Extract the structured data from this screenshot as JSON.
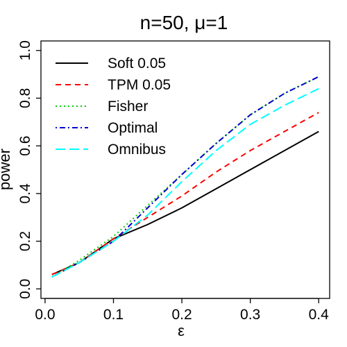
{
  "chart_data": {
    "type": "line",
    "title": "n=50, μ=1",
    "xlabel": "ε",
    "ylabel": "power",
    "xlim": [
      0.0,
      0.4
    ],
    "ylim": [
      0.0,
      1.0
    ],
    "xticks": [
      0.0,
      0.1,
      0.2,
      0.3,
      0.4
    ],
    "xtick_labels": [
      "0.0",
      "0.1",
      "0.2",
      "0.3",
      "0.4"
    ],
    "yticks": [
      0.0,
      0.2,
      0.4,
      0.6,
      0.8,
      1.0
    ],
    "ytick_labels": [
      "0.0",
      "0.2",
      "0.4",
      "0.6",
      "0.8",
      "1.0"
    ],
    "legend_position": "top-left",
    "grid": false,
    "x": [
      0.01,
      0.05,
      0.1,
      0.15,
      0.2,
      0.25,
      0.3,
      0.35,
      0.4
    ],
    "series": [
      {
        "name": "Soft 0.05",
        "color": "#000000",
        "dash": "solid",
        "values": [
          0.06,
          0.11,
          0.21,
          0.27,
          0.34,
          0.42,
          0.5,
          0.58,
          0.66
        ]
      },
      {
        "name": "TPM 0.05",
        "color": "#ff0000",
        "dash": "dashed",
        "values": [
          0.06,
          0.11,
          0.21,
          0.3,
          0.39,
          0.49,
          0.58,
          0.66,
          0.74
        ]
      },
      {
        "name": "Fisher",
        "color": "#00cd00",
        "dash": "dotted",
        "values": [
          0.05,
          0.12,
          0.22,
          0.35,
          0.48,
          0.61,
          0.73,
          0.82,
          0.89
        ]
      },
      {
        "name": "Optimal",
        "color": "#0000cd",
        "dash": "dotdash",
        "values": [
          0.05,
          0.11,
          0.2,
          0.34,
          0.48,
          0.61,
          0.73,
          0.82,
          0.89
        ]
      },
      {
        "name": "Omnibus",
        "color": "#00ffff",
        "dash": "longdash",
        "values": [
          0.05,
          0.11,
          0.2,
          0.31,
          0.45,
          0.58,
          0.69,
          0.77,
          0.84
        ]
      }
    ]
  }
}
